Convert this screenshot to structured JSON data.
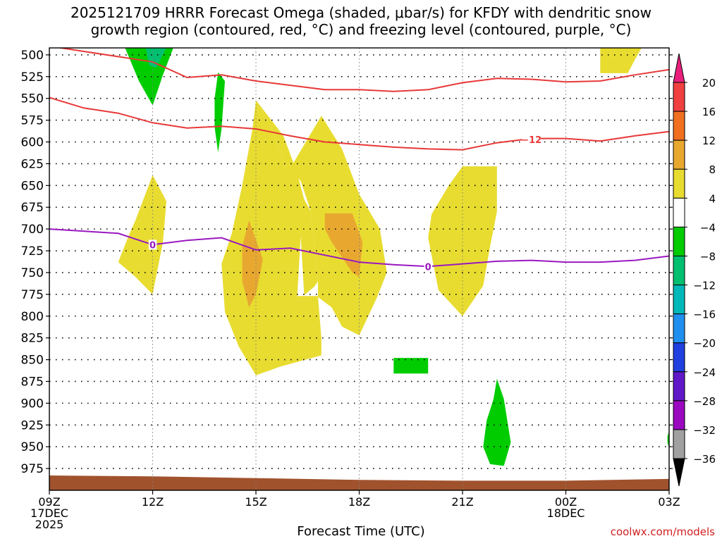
{
  "chart_data": {
    "type": "contour",
    "title_line1": "2025121709 HRRR Forecast Omega (shaded, μbar/s) for KFDY with dendritic snow",
    "title_line2": "growth region (contoured, red, °C) and freezing level (contoured, purple, °C)",
    "xlabel": "Forecast Time (UTC)",
    "credit": "coolwx.com/models",
    "x_hours": [
      0,
      3,
      6,
      9,
      12,
      15,
      18
    ],
    "x_ticks": [
      {
        "h": 0,
        "lines": [
          "09Z",
          "17DEC",
          "2025"
        ]
      },
      {
        "h": 3,
        "lines": [
          "12Z"
        ]
      },
      {
        "h": 6,
        "lines": [
          "15Z"
        ]
      },
      {
        "h": 9,
        "lines": [
          "18Z"
        ]
      },
      {
        "h": 12,
        "lines": [
          "21Z"
        ]
      },
      {
        "h": 15,
        "lines": [
          "00Z",
          "18DEC"
        ]
      },
      {
        "h": 18,
        "lines": [
          "03Z"
        ]
      }
    ],
    "y_ticks": [
      500,
      525,
      550,
      575,
      600,
      625,
      650,
      675,
      700,
      725,
      750,
      775,
      800,
      825,
      850,
      875,
      900,
      925,
      950,
      975
    ],
    "ylim": [
      492,
      1000
    ],
    "xlim": [
      0,
      18
    ],
    "colorbar": {
      "levels": [
        "20",
        "16",
        "12",
        "8",
        "4",
        "−4",
        "−8",
        "−12",
        "−16",
        "−20",
        "−24",
        "−28",
        "−32",
        "−36"
      ],
      "colors": [
        "#e8207c",
        "#f04040",
        "#f07020",
        "#e8a830",
        "#e8dc30",
        "#ffffff",
        "#00cc00",
        "#00c070",
        "#00b8b8",
        "#2090f0",
        "#2040e0",
        "#6018c8",
        "#9a08c0",
        "#a0a0a0",
        "#000000"
      ]
    },
    "contour_labels": [
      {
        "text": "−12",
        "h": 14.0,
        "p": 597
      },
      {
        "text": "0",
        "h": 3.0,
        "p": 718
      },
      {
        "text": "0",
        "h": 11.0,
        "p": 743
      }
    ],
    "series": [
      {
        "color": "#e83838",
        "points": [
          [
            0,
            490
          ],
          [
            3,
            508
          ],
          [
            4,
            526
          ],
          [
            5,
            523
          ],
          [
            6,
            530
          ],
          [
            8,
            540
          ],
          [
            9,
            540
          ],
          [
            10,
            542
          ],
          [
            11,
            540
          ],
          [
            12,
            532
          ],
          [
            13,
            527
          ],
          [
            14,
            528
          ],
          [
            15,
            531
          ],
          [
            16,
            530
          ],
          [
            17,
            523
          ],
          [
            18,
            517
          ]
        ]
      },
      {
        "color": "#e83838",
        "points": [
          [
            0,
            549
          ],
          [
            1,
            561
          ],
          [
            2,
            567
          ],
          [
            3,
            578
          ],
          [
            4,
            584
          ],
          [
            5,
            582
          ],
          [
            6,
            585
          ],
          [
            7,
            593
          ],
          [
            8,
            600
          ],
          [
            9,
            603
          ],
          [
            10,
            606
          ],
          [
            11,
            608
          ],
          [
            12,
            609
          ],
          [
            13,
            601
          ],
          [
            14,
            596
          ],
          [
            15,
            596
          ],
          [
            16,
            599
          ],
          [
            17,
            593
          ],
          [
            18,
            588
          ]
        ]
      },
      {
        "color": "#9a18c0",
        "points": [
          [
            0,
            700
          ],
          [
            2,
            705
          ],
          [
            3,
            718
          ],
          [
            4,
            713
          ],
          [
            5,
            710
          ],
          [
            6,
            724
          ],
          [
            7,
            722
          ],
          [
            8,
            730
          ],
          [
            9,
            738
          ],
          [
            10,
            741
          ],
          [
            11,
            743
          ],
          [
            12,
            740
          ],
          [
            13,
            737
          ],
          [
            14,
            736
          ],
          [
            15,
            738
          ],
          [
            16,
            738
          ],
          [
            17,
            736
          ],
          [
            18,
            731
          ]
        ]
      }
    ],
    "shaded": [
      {
        "color": "#00cc00",
        "points": [
          [
            2.2,
            492
          ],
          [
            3.6,
            492
          ],
          [
            3.3,
            523
          ],
          [
            3.0,
            558
          ],
          [
            2.6,
            530
          ]
        ]
      },
      {
        "color": "#00c070",
        "points": [
          [
            2.8,
            492
          ],
          [
            3.4,
            492
          ],
          [
            3.1,
            515
          ],
          [
            2.9,
            512
          ]
        ]
      },
      {
        "color": "#00cc00",
        "points": [
          [
            4.9,
            520
          ],
          [
            5.1,
            530
          ],
          [
            5.0,
            585
          ],
          [
            4.9,
            612
          ],
          [
            4.8,
            583
          ],
          [
            4.8,
            550
          ]
        ]
      },
      {
        "color": "#e8dc30",
        "points": [
          [
            6.0,
            552
          ],
          [
            6.4,
            580
          ],
          [
            6.9,
            630
          ],
          [
            7.0,
            665
          ],
          [
            7.3,
            708
          ],
          [
            7.4,
            776
          ],
          [
            7.7,
            766
          ],
          [
            7.8,
            760
          ],
          [
            7.6,
            680
          ],
          [
            7.4,
            666
          ],
          [
            7.2,
            636
          ],
          [
            6.8,
            593
          ]
        ]
      },
      {
        "color": "#e8dc30",
        "points": [
          [
            3.0,
            638
          ],
          [
            3.4,
            668
          ],
          [
            3.3,
            715
          ],
          [
            3.0,
            775
          ],
          [
            2.5,
            755
          ],
          [
            2.0,
            738
          ],
          [
            2.3,
            708
          ],
          [
            2.5,
            690
          ]
        ]
      },
      {
        "color": "#e8dc30",
        "points": [
          [
            6.0,
            552
          ],
          [
            6.4,
            580
          ],
          [
            6.9,
            630
          ],
          [
            7.2,
            637
          ],
          [
            7.3,
            708
          ],
          [
            7.2,
            777
          ],
          [
            7.8,
            777
          ],
          [
            7.9,
            825
          ],
          [
            7.9,
            845
          ],
          [
            6.7,
            858
          ],
          [
            6.0,
            868
          ],
          [
            5.5,
            835
          ],
          [
            5.1,
            795
          ],
          [
            5.0,
            740
          ],
          [
            5.3,
            705
          ],
          [
            5.6,
            650
          ],
          [
            5.9,
            585
          ]
        ]
      },
      {
        "color": "#e8dc30",
        "points": [
          [
            7.0,
            630
          ],
          [
            7.9,
            570
          ],
          [
            8.5,
            608
          ],
          [
            9.0,
            660
          ],
          [
            9.6,
            700
          ],
          [
            9.8,
            750
          ],
          [
            9.5,
            780
          ],
          [
            9.0,
            822
          ],
          [
            8.5,
            812
          ],
          [
            8.2,
            790
          ],
          [
            7.8,
            778
          ],
          [
            7.8,
            760
          ],
          [
            7.6,
            680
          ],
          [
            7.3,
            645
          ]
        ]
      },
      {
        "color": "#e8dc30",
        "points": [
          [
            12.0,
            628
          ],
          [
            13.0,
            628
          ],
          [
            13.0,
            680
          ],
          [
            12.8,
            720
          ],
          [
            12.6,
            765
          ],
          [
            12.0,
            800
          ],
          [
            11.3,
            770
          ],
          [
            11.0,
            710
          ],
          [
            11.1,
            683
          ],
          [
            11.6,
            650
          ]
        ]
      },
      {
        "color": "#e8dc30",
        "points": [
          [
            16.0,
            492
          ],
          [
            17.2,
            492
          ],
          [
            17.0,
            506
          ],
          [
            16.8,
            521
          ],
          [
            16.0,
            521
          ]
        ]
      },
      {
        "color": "#e8a830",
        "points": [
          [
            5.8,
            690
          ],
          [
            6.2,
            735
          ],
          [
            6.0,
            775
          ],
          [
            5.8,
            790
          ],
          [
            5.6,
            760
          ],
          [
            5.6,
            720
          ]
        ]
      },
      {
        "color": "#e8a830",
        "points": [
          [
            8.0,
            682
          ],
          [
            8.8,
            682
          ],
          [
            9.1,
            715
          ],
          [
            9.0,
            755
          ],
          [
            8.8,
            750
          ],
          [
            8.2,
            715
          ],
          [
            8.0,
            700
          ]
        ]
      },
      {
        "color": "#00cc00",
        "points": [
          [
            10.0,
            848
          ],
          [
            11.0,
            848
          ],
          [
            11.0,
            866
          ],
          [
            10.0,
            866
          ]
        ]
      },
      {
        "color": "#00cc00",
        "points": [
          [
            13.0,
            872
          ],
          [
            13.2,
            895
          ],
          [
            13.4,
            945
          ],
          [
            13.2,
            972
          ],
          [
            12.8,
            970
          ],
          [
            12.6,
            950
          ],
          [
            12.7,
            920
          ],
          [
            12.9,
            895
          ]
        ]
      },
      {
        "color": "#00cc00",
        "points": [
          [
            17.95,
            938
          ],
          [
            18.0,
            932
          ],
          [
            18.0,
            952
          ],
          [
            17.95,
            945
          ]
        ]
      }
    ],
    "terrain_color": "#a0522d"
  }
}
